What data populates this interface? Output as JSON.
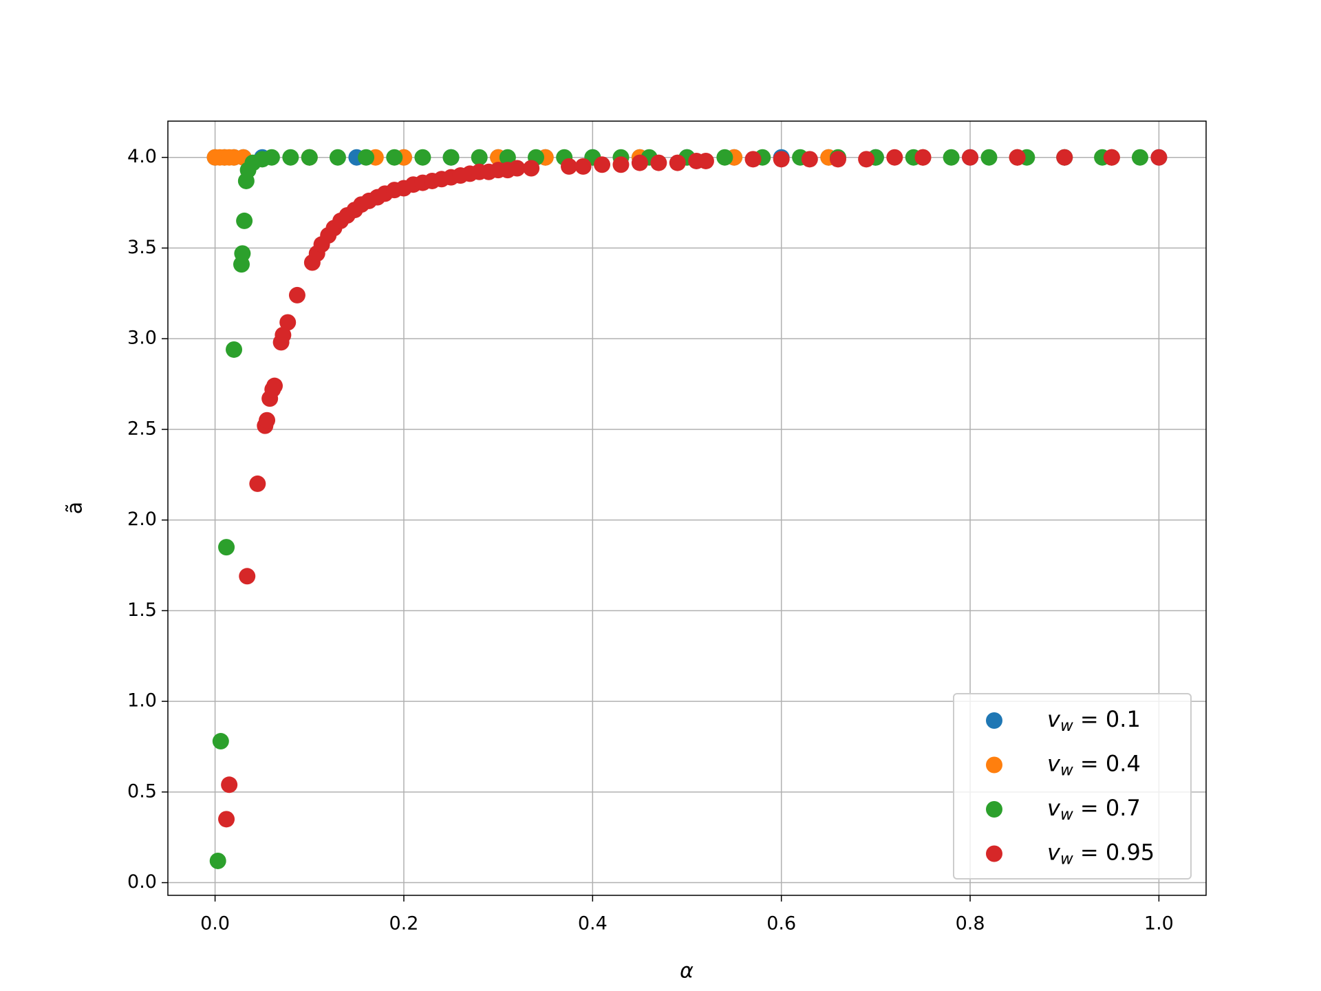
{
  "chart_data": {
    "type": "scatter",
    "xlabel": "α",
    "ylabel": "ã",
    "xlim": [
      -0.05,
      1.05
    ],
    "ylim": [
      -0.07,
      4.2
    ],
    "xticks": [
      {
        "value": 0,
        "label": "0.0"
      },
      0.2,
      0.4,
      0.6,
      0.8,
      {
        "value": 1,
        "label": "1.0"
      }
    ],
    "yticks": [
      {
        "value": 0,
        "label": "0.0"
      },
      0.5,
      {
        "value": 1,
        "label": "1.0"
      },
      1.5,
      {
        "value": 2,
        "label": "2.0"
      },
      2.5,
      {
        "value": 3,
        "label": "3.0"
      },
      3.5,
      {
        "value": 4,
        "label": "4.0"
      }
    ],
    "grid": true,
    "legend": "lower right",
    "series": [
      {
        "name": "vw = 0.1",
        "color": "#1f77b4",
        "x": [
          0.0,
          0.01,
          0.02,
          0.03,
          0.05,
          0.1,
          0.15,
          0.2,
          0.25,
          0.3,
          0.35,
          0.4,
          0.45,
          0.5,
          0.55,
          0.6,
          0.65,
          0.7,
          0.75,
          0.8,
          0.85,
          0.9,
          0.95,
          1.0
        ],
        "values": [
          4.0,
          4.0,
          4.0,
          4.0,
          4.0,
          4.0,
          4.0,
          4.0,
          4.0,
          4.0,
          4.0,
          4.0,
          4.0,
          4.0,
          4.0,
          4.0,
          4.0,
          4.0,
          4.0,
          4.0,
          4.0,
          4.0,
          4.0,
          4.0
        ]
      },
      {
        "name": "vw = 0.4",
        "color": "#ff7f0e",
        "x": [
          0.0,
          0.005,
          0.01,
          0.015,
          0.02,
          0.03,
          0.1,
          0.17,
          0.2,
          0.3,
          0.35,
          0.45,
          0.55,
          0.65,
          0.75,
          0.85,
          0.95
        ],
        "values": [
          4.0,
          4.0,
          4.0,
          4.0,
          4.0,
          4.0,
          4.0,
          4.0,
          4.0,
          4.0,
          4.0,
          4.0,
          4.0,
          4.0,
          4.0,
          4.0,
          4.0
        ]
      },
      {
        "name": "vw = 0.7",
        "color": "#2ca02c",
        "x": [
          0.003,
          0.006,
          0.012,
          0.02,
          0.028,
          0.029,
          0.031,
          0.033,
          0.035,
          0.04,
          0.05,
          0.06,
          0.08,
          0.1,
          0.13,
          0.16,
          0.19,
          0.22,
          0.25,
          0.28,
          0.31,
          0.34,
          0.37,
          0.4,
          0.43,
          0.46,
          0.5,
          0.54,
          0.58,
          0.62,
          0.66,
          0.7,
          0.74,
          0.78,
          0.82,
          0.86,
          0.9,
          0.94,
          0.98
        ],
        "values": [
          0.12,
          0.78,
          1.85,
          2.94,
          3.41,
          3.47,
          3.65,
          3.87,
          3.93,
          3.97,
          3.99,
          4.0,
          4.0,
          4.0,
          4.0,
          4.0,
          4.0,
          4.0,
          4.0,
          4.0,
          4.0,
          4.0,
          4.0,
          4.0,
          4.0,
          4.0,
          4.0,
          4.0,
          4.0,
          4.0,
          4.0,
          4.0,
          4.0,
          4.0,
          4.0,
          4.0,
          4.0,
          4.0,
          4.0
        ]
      },
      {
        "name": "vw = 0.95",
        "color": "#d62728",
        "x": [
          0.012,
          0.015,
          0.034,
          0.045,
          0.053,
          0.055,
          0.058,
          0.061,
          0.063,
          0.07,
          0.072,
          0.077,
          0.087,
          0.103,
          0.108,
          0.113,
          0.12,
          0.126,
          0.133,
          0.14,
          0.148,
          0.155,
          0.163,
          0.172,
          0.18,
          0.19,
          0.2,
          0.21,
          0.22,
          0.23,
          0.24,
          0.25,
          0.26,
          0.27,
          0.28,
          0.29,
          0.3,
          0.31,
          0.32,
          0.335,
          0.375,
          0.39,
          0.41,
          0.43,
          0.45,
          0.47,
          0.49,
          0.51,
          0.52,
          0.57,
          0.6,
          0.63,
          0.66,
          0.69,
          0.72,
          0.75,
          0.8,
          0.85,
          0.9,
          0.95,
          1.0
        ],
        "values": [
          0.35,
          0.54,
          1.69,
          2.2,
          2.52,
          2.55,
          2.67,
          2.72,
          2.74,
          2.98,
          3.02,
          3.09,
          3.24,
          3.42,
          3.47,
          3.52,
          3.57,
          3.61,
          3.65,
          3.68,
          3.71,
          3.74,
          3.76,
          3.78,
          3.8,
          3.82,
          3.83,
          3.85,
          3.86,
          3.87,
          3.88,
          3.89,
          3.9,
          3.91,
          3.92,
          3.92,
          3.93,
          3.93,
          3.94,
          3.94,
          3.95,
          3.95,
          3.96,
          3.96,
          3.97,
          3.97,
          3.97,
          3.98,
          3.98,
          3.99,
          3.99,
          3.99,
          3.99,
          3.99,
          4.0,
          4.0,
          4.0,
          4.0,
          4.0,
          4.0,
          4.0
        ]
      }
    ]
  }
}
